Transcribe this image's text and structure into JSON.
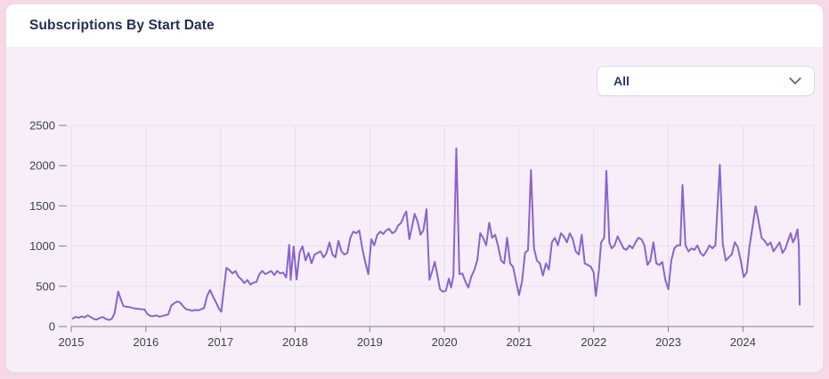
{
  "card": {
    "title": "Subscriptions By Start Date",
    "filter": {
      "value": "All",
      "chevron_icon": "chevron-down"
    }
  },
  "colors": {
    "page_background": "#f8d7e7",
    "card_background": "#f8eefa",
    "header_background": "#ffffff",
    "card_border": "#e3e3ea",
    "grid_line": "#e2e2e9",
    "axis_line": "#787f8a",
    "axis_label": "#3a4150",
    "series_line": "#8a63d2",
    "title_text": "#223055",
    "dropdown_text": "#2b3a5c"
  },
  "chart_data": {
    "type": "line",
    "title": "Subscriptions By Start Date",
    "xlabel": "",
    "ylabel": "",
    "grid": true,
    "legend": "none",
    "x_axis": {
      "min": 2015.0,
      "max": 2024.95,
      "tick_years": [
        2015,
        2016,
        2017,
        2018,
        2019,
        2020,
        2021,
        2022,
        2023,
        2024
      ]
    },
    "y_axis": {
      "min": 0,
      "max": 2500,
      "ticks": [
        0,
        500,
        1000,
        1500,
        2000,
        2500
      ]
    },
    "series": [
      {
        "name": "Subscriptions",
        "color": "#8a63d2",
        "points": [
          [
            2015.02,
            100
          ],
          [
            2015.06,
            120
          ],
          [
            2015.1,
            108
          ],
          [
            2015.14,
            126
          ],
          [
            2015.18,
            112
          ],
          [
            2015.22,
            140
          ],
          [
            2015.26,
            118
          ],
          [
            2015.3,
            95
          ],
          [
            2015.34,
            85
          ],
          [
            2015.38,
            105
          ],
          [
            2015.42,
            120
          ],
          [
            2015.46,
            95
          ],
          [
            2015.5,
            82
          ],
          [
            2015.54,
            92
          ],
          [
            2015.58,
            160
          ],
          [
            2015.63,
            435
          ],
          [
            2015.66,
            350
          ],
          [
            2015.7,
            252
          ],
          [
            2015.74,
            246
          ],
          [
            2015.78,
            240
          ],
          [
            2015.82,
            230
          ],
          [
            2015.86,
            224
          ],
          [
            2015.9,
            220
          ],
          [
            2015.94,
            214
          ],
          [
            2015.98,
            214
          ],
          [
            2016.02,
            155
          ],
          [
            2016.06,
            132
          ],
          [
            2016.1,
            128
          ],
          [
            2016.14,
            138
          ],
          [
            2016.18,
            122
          ],
          [
            2016.22,
            130
          ],
          [
            2016.26,
            140
          ],
          [
            2016.3,
            150
          ],
          [
            2016.34,
            260
          ],
          [
            2016.38,
            290
          ],
          [
            2016.42,
            312
          ],
          [
            2016.46,
            298
          ],
          [
            2016.5,
            250
          ],
          [
            2016.54,
            215
          ],
          [
            2016.58,
            208
          ],
          [
            2016.62,
            196
          ],
          [
            2016.66,
            206
          ],
          [
            2016.7,
            200
          ],
          [
            2016.74,
            214
          ],
          [
            2016.78,
            230
          ],
          [
            2016.82,
            380
          ],
          [
            2016.86,
            455
          ],
          [
            2016.9,
            370
          ],
          [
            2016.94,
            300
          ],
          [
            2016.98,
            220
          ],
          [
            2017.01,
            185
          ],
          [
            2017.05,
            500
          ],
          [
            2017.08,
            730
          ],
          [
            2017.12,
            700
          ],
          [
            2017.16,
            660
          ],
          [
            2017.2,
            690
          ],
          [
            2017.24,
            620
          ],
          [
            2017.28,
            585
          ],
          [
            2017.32,
            540
          ],
          [
            2017.36,
            578
          ],
          [
            2017.4,
            520
          ],
          [
            2017.44,
            545
          ],
          [
            2017.48,
            552
          ],
          [
            2017.52,
            650
          ],
          [
            2017.56,
            690
          ],
          [
            2017.6,
            652
          ],
          [
            2017.64,
            670
          ],
          [
            2017.68,
            690
          ],
          [
            2017.72,
            640
          ],
          [
            2017.76,
            690
          ],
          [
            2017.8,
            660
          ],
          [
            2017.84,
            670
          ],
          [
            2017.88,
            608
          ],
          [
            2017.92,
            1015
          ],
          [
            2017.94,
            580
          ],
          [
            2017.98,
            995
          ],
          [
            2018.02,
            585
          ],
          [
            2018.06,
            920
          ],
          [
            2018.1,
            997
          ],
          [
            2018.14,
            820
          ],
          [
            2018.18,
            915
          ],
          [
            2018.22,
            785
          ],
          [
            2018.26,
            895
          ],
          [
            2018.3,
            915
          ],
          [
            2018.34,
            935
          ],
          [
            2018.38,
            860
          ],
          [
            2018.42,
            915
          ],
          [
            2018.46,
            1045
          ],
          [
            2018.5,
            895
          ],
          [
            2018.54,
            860
          ],
          [
            2018.58,
            1065
          ],
          [
            2018.62,
            935
          ],
          [
            2018.66,
            895
          ],
          [
            2018.7,
            915
          ],
          [
            2018.74,
            1105
          ],
          [
            2018.78,
            1180
          ],
          [
            2018.82,
            1160
          ],
          [
            2018.86,
            1195
          ],
          [
            2018.9,
            970
          ],
          [
            2018.94,
            800
          ],
          [
            2018.98,
            650
          ],
          [
            2019.02,
            1085
          ],
          [
            2019.06,
            1010
          ],
          [
            2019.1,
            1140
          ],
          [
            2019.14,
            1180
          ],
          [
            2019.18,
            1150
          ],
          [
            2019.22,
            1196
          ],
          [
            2019.26,
            1215
          ],
          [
            2019.3,
            1160
          ],
          [
            2019.34,
            1180
          ],
          [
            2019.38,
            1255
          ],
          [
            2019.42,
            1290
          ],
          [
            2019.46,
            1380
          ],
          [
            2019.49,
            1430
          ],
          [
            2019.53,
            1085
          ],
          [
            2019.57,
            1260
          ],
          [
            2019.6,
            1400
          ],
          [
            2019.64,
            1310
          ],
          [
            2019.68,
            1140
          ],
          [
            2019.72,
            1200
          ],
          [
            2019.76,
            1459
          ],
          [
            2019.8,
            580
          ],
          [
            2019.84,
            700
          ],
          [
            2019.87,
            805
          ],
          [
            2019.9,
            670
          ],
          [
            2019.94,
            465
          ],
          [
            2019.98,
            432
          ],
          [
            2020.02,
            446
          ],
          [
            2020.06,
            596
          ],
          [
            2020.09,
            484
          ],
          [
            2020.12,
            634
          ],
          [
            2020.16,
            2216
          ],
          [
            2020.2,
            652
          ],
          [
            2020.24,
            660
          ],
          [
            2020.28,
            560
          ],
          [
            2020.32,
            484
          ],
          [
            2020.36,
            620
          ],
          [
            2020.4,
            700
          ],
          [
            2020.44,
            821
          ],
          [
            2020.48,
            1160
          ],
          [
            2020.52,
            1100
          ],
          [
            2020.56,
            1010
          ],
          [
            2020.6,
            1290
          ],
          [
            2020.64,
            1103
          ],
          [
            2020.68,
            1140
          ],
          [
            2020.72,
            1000
          ],
          [
            2020.76,
            821
          ],
          [
            2020.8,
            784
          ],
          [
            2020.84,
            1103
          ],
          [
            2020.88,
            784
          ],
          [
            2020.92,
            740
          ],
          [
            2020.96,
            560
          ],
          [
            2021.0,
            390
          ],
          [
            2021.04,
            560
          ],
          [
            2021.08,
            915
          ],
          [
            2021.12,
            950
          ],
          [
            2021.16,
            1946
          ],
          [
            2021.2,
            971
          ],
          [
            2021.24,
            820
          ],
          [
            2021.28,
            784
          ],
          [
            2021.32,
            634
          ],
          [
            2021.36,
            784
          ],
          [
            2021.4,
            709
          ],
          [
            2021.44,
            1046
          ],
          [
            2021.48,
            1103
          ],
          [
            2021.52,
            1009
          ],
          [
            2021.56,
            1159
          ],
          [
            2021.6,
            1121
          ],
          [
            2021.64,
            1046
          ],
          [
            2021.68,
            1159
          ],
          [
            2021.72,
            1084
          ],
          [
            2021.76,
            934
          ],
          [
            2021.8,
            896
          ],
          [
            2021.84,
            1140
          ],
          [
            2021.88,
            784
          ],
          [
            2021.92,
            765
          ],
          [
            2021.96,
            746
          ],
          [
            2022.0,
            671
          ],
          [
            2022.03,
            379
          ],
          [
            2022.07,
            700
          ],
          [
            2022.1,
            1046
          ],
          [
            2022.14,
            1103
          ],
          [
            2022.17,
            1935
          ],
          [
            2022.21,
            1046
          ],
          [
            2022.24,
            971
          ],
          [
            2022.28,
            1009
          ],
          [
            2022.32,
            1121
          ],
          [
            2022.36,
            1046
          ],
          [
            2022.4,
            971
          ],
          [
            2022.44,
            953
          ],
          [
            2022.48,
            1009
          ],
          [
            2022.52,
            971
          ],
          [
            2022.56,
            1046
          ],
          [
            2022.6,
            1103
          ],
          [
            2022.64,
            1084
          ],
          [
            2022.68,
            1009
          ],
          [
            2022.72,
            765
          ],
          [
            2022.76,
            821
          ],
          [
            2022.8,
            1046
          ],
          [
            2022.84,
            784
          ],
          [
            2022.88,
            765
          ],
          [
            2022.92,
            803
          ],
          [
            2022.96,
            578
          ],
          [
            2023.0,
            465
          ],
          [
            2023.04,
            821
          ],
          [
            2023.08,
            971
          ],
          [
            2023.12,
            1009
          ],
          [
            2023.16,
            1010
          ],
          [
            2023.19,
            1759
          ],
          [
            2023.23,
            1009
          ],
          [
            2023.27,
            934
          ],
          [
            2023.31,
            971
          ],
          [
            2023.35,
            953
          ],
          [
            2023.39,
            1009
          ],
          [
            2023.43,
            915
          ],
          [
            2023.47,
            878
          ],
          [
            2023.51,
            934
          ],
          [
            2023.55,
            1009
          ],
          [
            2023.59,
            971
          ],
          [
            2023.63,
            1009
          ],
          [
            2023.69,
            2010
          ],
          [
            2023.73,
            1028
          ],
          [
            2023.77,
            821
          ],
          [
            2023.81,
            859
          ],
          [
            2023.85,
            896
          ],
          [
            2023.89,
            1046
          ],
          [
            2023.93,
            990
          ],
          [
            2023.97,
            821
          ],
          [
            2024.01,
            615
          ],
          [
            2024.05,
            671
          ],
          [
            2024.09,
            1009
          ],
          [
            2024.13,
            1253
          ],
          [
            2024.17,
            1496
          ],
          [
            2024.21,
            1309
          ],
          [
            2024.25,
            1103
          ],
          [
            2024.29,
            1065
          ],
          [
            2024.33,
            1009
          ],
          [
            2024.37,
            1046
          ],
          [
            2024.41,
            934
          ],
          [
            2024.45,
            990
          ],
          [
            2024.49,
            1046
          ],
          [
            2024.53,
            915
          ],
          [
            2024.57,
            971
          ],
          [
            2024.61,
            1084
          ],
          [
            2024.64,
            1159
          ],
          [
            2024.67,
            1046
          ],
          [
            2024.7,
            1103
          ],
          [
            2024.73,
            1208
          ],
          [
            2024.75,
            990
          ],
          [
            2024.76,
            270
          ]
        ]
      }
    ]
  }
}
